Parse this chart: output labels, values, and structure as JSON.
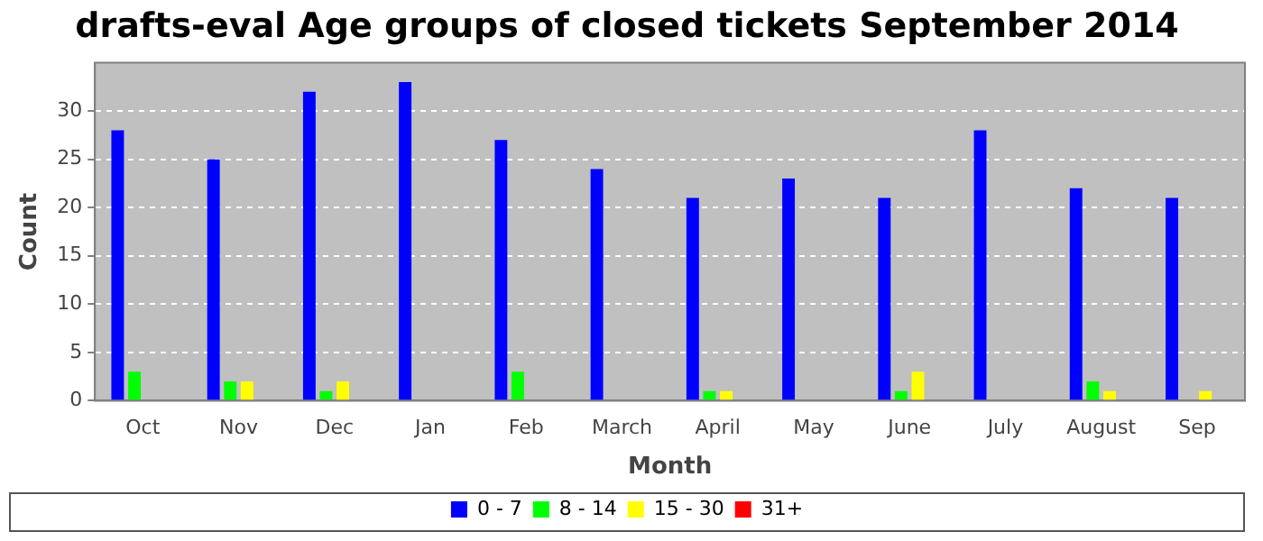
{
  "chart_data": {
    "type": "bar",
    "title": "drafts-eval Age groups of closed tickets September 2014",
    "xlabel": "Month",
    "ylabel": "Count",
    "categories": [
      "Oct",
      "Nov",
      "Dec",
      "Jan",
      "Feb",
      "March",
      "April",
      "May",
      "June",
      "July",
      "August",
      "Sep"
    ],
    "series": [
      {
        "name": "0 - 7",
        "color": "#0000ff",
        "values": [
          28,
          25,
          32,
          33,
          27,
          24,
          21,
          23,
          21,
          28,
          22,
          21
        ]
      },
      {
        "name": "8 - 14",
        "color": "#00ff00",
        "values": [
          3,
          2,
          1,
          0,
          3,
          0,
          1,
          0,
          1,
          0,
          2,
          0
        ]
      },
      {
        "name": "15 - 30",
        "color": "#ffff00",
        "values": [
          0,
          2,
          2,
          0,
          0,
          0,
          1,
          0,
          3,
          0,
          1,
          1
        ]
      },
      {
        "name": "31+",
        "color": "#ff0000",
        "values": [
          0,
          0,
          0,
          0,
          0,
          0,
          0,
          0,
          0,
          0,
          0,
          0
        ]
      }
    ],
    "ylim": [
      0,
      35
    ],
    "yticks": [
      0,
      5,
      10,
      15,
      20,
      25,
      30
    ],
    "grid": "y",
    "legend": "bottom"
  }
}
